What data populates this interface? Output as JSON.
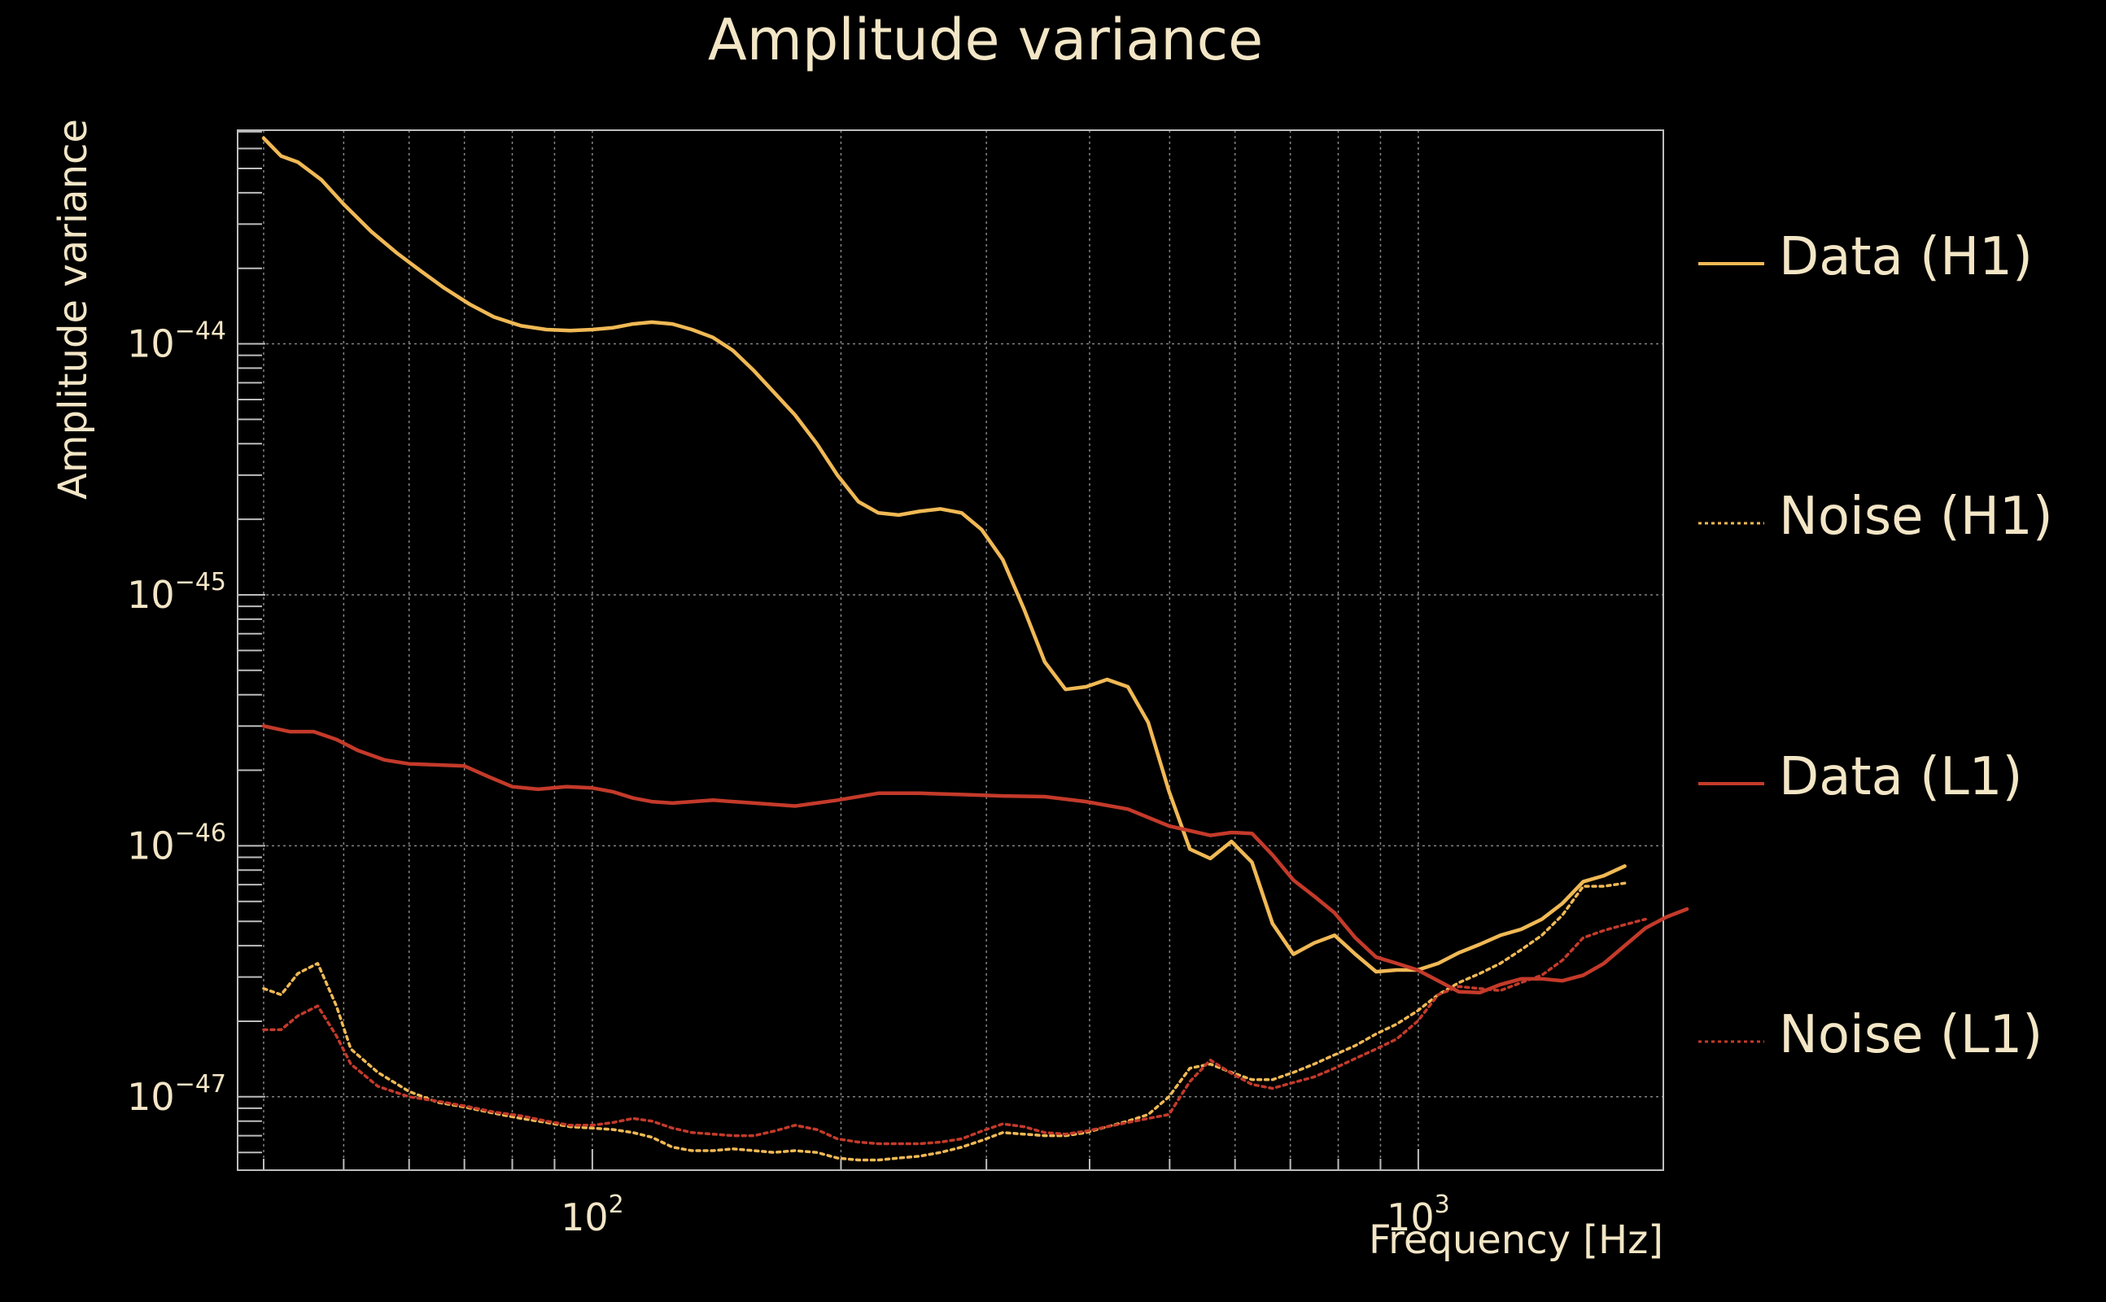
{
  "chart_data": {
    "type": "line",
    "title": "Amplitude variance",
    "xlabel": "Frequency [Hz]",
    "ylabel": "Amplitude variance",
    "xscale": "log",
    "yscale": "log",
    "xlim": [
      37.2,
      1980
    ],
    "ylim": [
      5.1e-48,
      7.1e-44
    ],
    "grid": true,
    "legend_position": "right",
    "x_ticks": [
      {
        "base": "10",
        "exp": "2",
        "value": 100
      },
      {
        "base": "10",
        "exp": "3",
        "value": 1000
      }
    ],
    "y_ticks": [
      {
        "base": "10",
        "exp": "−44",
        "value": 1e-44
      },
      {
        "base": "10",
        "exp": "−45",
        "value": 1e-45
      },
      {
        "base": "10",
        "exp": "−46",
        "value": 1e-46
      },
      {
        "base": "10",
        "exp": "−47",
        "value": 1e-47
      }
    ],
    "series": [
      {
        "name": "Data (H1)",
        "color": "#f0b955",
        "dash": "solid",
        "points": [
          [
            40,
            6.6e-44
          ],
          [
            42,
            5.6e-44
          ],
          [
            44,
            5.3e-44
          ],
          [
            47,
            4.5e-44
          ],
          [
            50,
            3.6e-44
          ],
          [
            54,
            2.8e-44
          ],
          [
            58,
            2.3e-44
          ],
          [
            62,
            1.95e-44
          ],
          [
            66,
            1.68e-44
          ],
          [
            71,
            1.44e-44
          ],
          [
            76,
            1.28e-44
          ],
          [
            82,
            1.18e-44
          ],
          [
            88,
            1.14e-44
          ],
          [
            94,
            1.13e-44
          ],
          [
            100,
            1.14e-44
          ],
          [
            106,
            1.16e-44
          ],
          [
            112,
            1.2e-44
          ],
          [
            118,
            1.22e-44
          ],
          [
            125,
            1.2e-44
          ],
          [
            132,
            1.14e-44
          ],
          [
            140,
            1.06e-44
          ],
          [
            148,
            9.4e-45
          ],
          [
            157,
            7.8e-45
          ],
          [
            166,
            6.4e-45
          ],
          [
            176,
            5.2e-45
          ],
          [
            187,
            4e-45
          ],
          [
            198,
            3e-45
          ],
          [
            210,
            2.35e-45
          ],
          [
            222,
            2.12e-45
          ],
          [
            235,
            2.08e-45
          ],
          [
            249,
            2.15e-45
          ],
          [
            264,
            2.2e-45
          ],
          [
            280,
            2.12e-45
          ],
          [
            296,
            1.82e-45
          ],
          [
            314,
            1.38e-45
          ],
          [
            333,
            8.8e-46
          ],
          [
            353,
            5.4e-46
          ],
          [
            374,
            4.2e-46
          ],
          [
            396,
            4.3e-46
          ],
          [
            420,
            4.6e-46
          ],
          [
            445,
            4.3e-46
          ],
          [
            471,
            3.1e-46
          ],
          [
            499,
            1.65e-46
          ],
          [
            529,
            9.7e-47
          ],
          [
            560,
            8.9e-47
          ],
          [
            594,
            1.04e-46
          ],
          [
            629,
            8.6e-47
          ],
          [
            666,
            4.9e-47
          ],
          [
            706,
            3.7e-47
          ],
          [
            748,
            4.1e-47
          ],
          [
            792,
            4.4e-47
          ],
          [
            839,
            3.7e-47
          ],
          [
            889,
            3.15e-47
          ],
          [
            942,
            3.2e-47
          ],
          [
            998,
            3.2e-47
          ],
          [
            1057,
            3.4e-47
          ],
          [
            1120,
            3.75e-47
          ],
          [
            1187,
            4.05e-47
          ],
          [
            1257,
            4.4e-47
          ],
          [
            1332,
            4.65e-47
          ],
          [
            1411,
            5.1e-47
          ],
          [
            1495,
            5.9e-47
          ],
          [
            1584,
            7.2e-47
          ],
          [
            1678,
            7.6e-47
          ],
          [
            1778,
            8.3e-47
          ]
        ]
      },
      {
        "name": "Noise (H1)",
        "color": "#f0b955",
        "dash": "dotted",
        "points": [
          [
            40,
            2.7e-47
          ],
          [
            42,
            2.55e-47
          ],
          [
            44,
            3.1e-47
          ],
          [
            46.5,
            3.4e-47
          ],
          [
            49,
            2.3e-47
          ],
          [
            51,
            1.55e-47
          ],
          [
            55,
            1.25e-47
          ],
          [
            60,
            1.05e-47
          ],
          [
            65,
            9.5e-48
          ],
          [
            70,
            9.1e-48
          ],
          [
            76,
            8.6e-48
          ],
          [
            82,
            8.2e-48
          ],
          [
            88,
            7.9e-48
          ],
          [
            94,
            7.6e-48
          ],
          [
            100,
            7.5e-48
          ],
          [
            106,
            7.4e-48
          ],
          [
            112,
            7.2e-48
          ],
          [
            118,
            6.9e-48
          ],
          [
            125,
            6.3e-48
          ],
          [
            132,
            6.1e-48
          ],
          [
            140,
            6.1e-48
          ],
          [
            148,
            6.2e-48
          ],
          [
            157,
            6.1e-48
          ],
          [
            166,
            6e-48
          ],
          [
            176,
            6.1e-48
          ],
          [
            187,
            6e-48
          ],
          [
            198,
            5.7e-48
          ],
          [
            210,
            5.6e-48
          ],
          [
            222,
            5.6e-48
          ],
          [
            235,
            5.7e-48
          ],
          [
            249,
            5.8e-48
          ],
          [
            264,
            6e-48
          ],
          [
            280,
            6.3e-48
          ],
          [
            296,
            6.7e-48
          ],
          [
            314,
            7.2e-48
          ],
          [
            333,
            7.1e-48
          ],
          [
            353,
            7e-48
          ],
          [
            374,
            7e-48
          ],
          [
            396,
            7.2e-48
          ],
          [
            420,
            7.6e-48
          ],
          [
            445,
            8e-48
          ],
          [
            471,
            8.5e-48
          ],
          [
            499,
            1e-47
          ],
          [
            529,
            1.3e-47
          ],
          [
            560,
            1.35e-47
          ],
          [
            594,
            1.25e-47
          ],
          [
            629,
            1.17e-47
          ],
          [
            666,
            1.17e-47
          ],
          [
            706,
            1.25e-47
          ],
          [
            748,
            1.35e-47
          ],
          [
            792,
            1.47e-47
          ],
          [
            839,
            1.6e-47
          ],
          [
            889,
            1.78e-47
          ],
          [
            942,
            1.95e-47
          ],
          [
            998,
            2.2e-47
          ],
          [
            1057,
            2.55e-47
          ],
          [
            1120,
            2.85e-47
          ],
          [
            1187,
            3.1e-47
          ],
          [
            1257,
            3.4e-47
          ],
          [
            1332,
            3.85e-47
          ],
          [
            1411,
            4.4e-47
          ],
          [
            1495,
            5.3e-47
          ],
          [
            1584,
            6.9e-47
          ],
          [
            1678,
            6.9e-47
          ],
          [
            1778,
            7.1e-47
          ]
        ]
      },
      {
        "name": "Data (L1)",
        "color": "#c43a2a",
        "dash": "solid",
        "points": [
          [
            40,
            3e-46
          ],
          [
            43,
            2.85e-46
          ],
          [
            46,
            2.85e-46
          ],
          [
            49,
            2.65e-46
          ],
          [
            52,
            2.4e-46
          ],
          [
            56,
            2.2e-46
          ],
          [
            60,
            2.12e-46
          ],
          [
            65,
            2.1e-46
          ],
          [
            70,
            2.08e-46
          ],
          [
            75,
            1.88e-46
          ],
          [
            80,
            1.72e-46
          ],
          [
            86,
            1.68e-46
          ],
          [
            93,
            1.72e-46
          ],
          [
            100,
            1.7e-46
          ],
          [
            106,
            1.64e-46
          ],
          [
            112,
            1.55e-46
          ],
          [
            118,
            1.5e-46
          ],
          [
            125,
            1.48e-46
          ],
          [
            140,
            1.52e-46
          ],
          [
            157,
            1.48e-46
          ],
          [
            176,
            1.44e-46
          ],
          [
            198,
            1.52e-46
          ],
          [
            222,
            1.62e-46
          ],
          [
            249,
            1.62e-46
          ],
          [
            280,
            1.6e-46
          ],
          [
            314,
            1.58e-46
          ],
          [
            353,
            1.57e-46
          ],
          [
            396,
            1.5e-46
          ],
          [
            445,
            1.4e-46
          ],
          [
            499,
            1.2e-46
          ],
          [
            560,
            1.1e-46
          ],
          [
            594,
            1.13e-46
          ],
          [
            629,
            1.12e-46
          ],
          [
            666,
            9.2e-47
          ],
          [
            706,
            7.3e-47
          ],
          [
            748,
            6.3e-47
          ],
          [
            792,
            5.4e-47
          ],
          [
            839,
            4.3e-47
          ],
          [
            889,
            3.6e-47
          ],
          [
            942,
            3.4e-47
          ],
          [
            998,
            3.2e-47
          ],
          [
            1057,
            2.9e-47
          ],
          [
            1120,
            2.62e-47
          ],
          [
            1187,
            2.6e-47
          ],
          [
            1257,
            2.8e-47
          ],
          [
            1332,
            2.95e-47
          ],
          [
            1411,
            2.95e-47
          ],
          [
            1495,
            2.9e-47
          ],
          [
            1584,
            3.05e-47
          ],
          [
            1678,
            3.4e-47
          ],
          [
            1778,
            4e-47
          ],
          [
            1884,
            4.7e-47
          ],
          [
            1996,
            5.2e-47
          ],
          [
            2115,
            5.6e-47
          ]
        ]
      },
      {
        "name": "Noise (L1)",
        "color": "#c43a2a",
        "dash": "dotted",
        "points": [
          [
            40,
            1.85e-47
          ],
          [
            42,
            1.85e-47
          ],
          [
            44,
            2.1e-47
          ],
          [
            46.5,
            2.3e-47
          ],
          [
            49,
            1.75e-47
          ],
          [
            51,
            1.35e-47
          ],
          [
            55,
            1.1e-47
          ],
          [
            60,
            1e-47
          ],
          [
            65,
            9.6e-48
          ],
          [
            70,
            9.2e-48
          ],
          [
            76,
            8.7e-48
          ],
          [
            82,
            8.4e-48
          ],
          [
            88,
            8e-48
          ],
          [
            94,
            7.7e-48
          ],
          [
            100,
            7.7e-48
          ],
          [
            106,
            7.9e-48
          ],
          [
            112,
            8.2e-48
          ],
          [
            118,
            8e-48
          ],
          [
            125,
            7.5e-48
          ],
          [
            132,
            7.2e-48
          ],
          [
            140,
            7.1e-48
          ],
          [
            148,
            7e-48
          ],
          [
            157,
            7e-48
          ],
          [
            166,
            7.3e-48
          ],
          [
            176,
            7.7e-48
          ],
          [
            187,
            7.4e-48
          ],
          [
            198,
            6.8e-48
          ],
          [
            210,
            6.6e-48
          ],
          [
            222,
            6.5e-48
          ],
          [
            235,
            6.5e-48
          ],
          [
            249,
            6.5e-48
          ],
          [
            264,
            6.6e-48
          ],
          [
            280,
            6.8e-48
          ],
          [
            296,
            7.3e-48
          ],
          [
            314,
            7.8e-48
          ],
          [
            333,
            7.6e-48
          ],
          [
            353,
            7.2e-48
          ],
          [
            374,
            7.1e-48
          ],
          [
            396,
            7.3e-48
          ],
          [
            420,
            7.6e-48
          ],
          [
            445,
            7.9e-48
          ],
          [
            471,
            8.2e-48
          ],
          [
            499,
            8.5e-48
          ],
          [
            529,
            1.15e-47
          ],
          [
            560,
            1.4e-47
          ],
          [
            594,
            1.24e-47
          ],
          [
            629,
            1.12e-47
          ],
          [
            666,
            1.08e-47
          ],
          [
            706,
            1.14e-47
          ],
          [
            748,
            1.2e-47
          ],
          [
            792,
            1.3e-47
          ],
          [
            839,
            1.42e-47
          ],
          [
            889,
            1.55e-47
          ],
          [
            942,
            1.7e-47
          ],
          [
            998,
            2e-47
          ],
          [
            1057,
            2.55e-47
          ],
          [
            1120,
            2.75e-47
          ],
          [
            1187,
            2.7e-47
          ],
          [
            1257,
            2.65e-47
          ],
          [
            1332,
            2.85e-47
          ],
          [
            1411,
            3.05e-47
          ],
          [
            1495,
            3.5e-47
          ],
          [
            1584,
            4.3e-47
          ],
          [
            1678,
            4.6e-47
          ],
          [
            1778,
            4.85e-47
          ],
          [
            1884,
            5.1e-47
          ]
        ]
      }
    ]
  }
}
